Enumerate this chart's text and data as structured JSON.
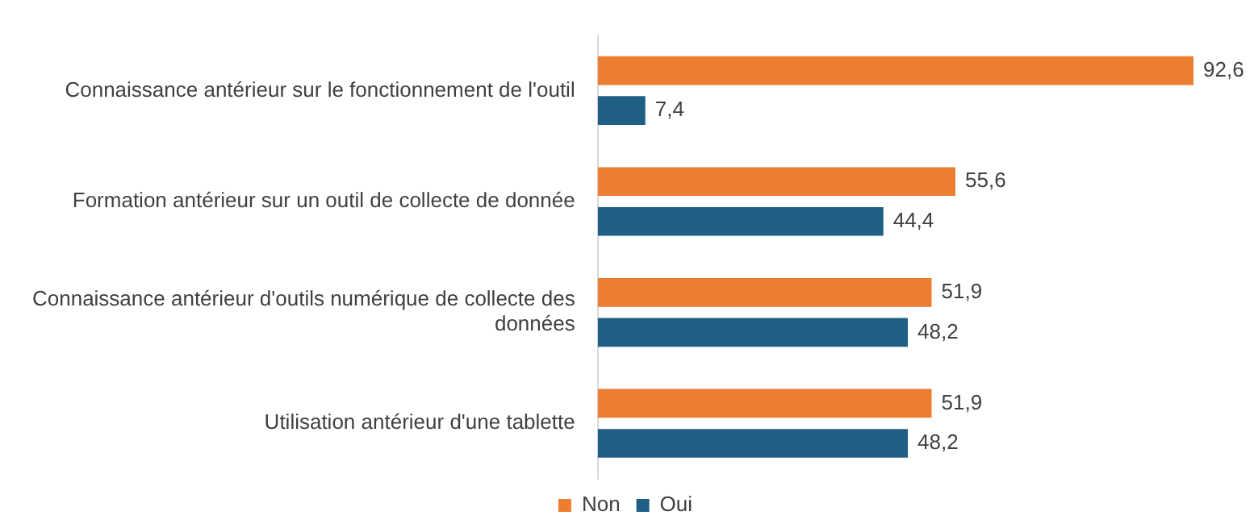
{
  "chart_data": {
    "type": "bar",
    "orientation": "horizontal",
    "categories": [
      "Connaissance antérieur sur le fonctionnement de l'outil",
      "Formation antérieur sur un outil de collecte de donnée",
      "Connaissance antérieur d'outils numérique de collecte des données",
      "Utilisation antérieur d'une tablette"
    ],
    "series": [
      {
        "name": "Non",
        "color": "#ed7d31",
        "values": [
          92.6,
          55.6,
          51.9,
          51.9
        ],
        "value_labels": [
          "92,6",
          "55,6",
          "51,9",
          "51,9"
        ]
      },
      {
        "name": "Oui",
        "color": "#1f5f84",
        "values": [
          7.4,
          44.4,
          48.2,
          48.2
        ],
        "value_labels": [
          "7,4",
          "44,4",
          "48,2",
          "48,2"
        ]
      }
    ],
    "tick_labels": "y",
    "grid": false,
    "legend": "bottom"
  }
}
